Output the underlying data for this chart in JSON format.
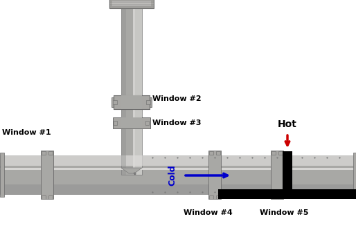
{
  "bg_color": "#ffffff",
  "pipe_color": "#c0bfbc",
  "pipe_dark": "#7a7a7a",
  "pipe_mid": "#a8a8a5",
  "pipe_light": "#dddcda",
  "pipe_shadow": "#909090",
  "flange_color": "#a8a7a4",
  "flange_dark": "#6a6a6a",
  "black": "#000000",
  "hot_color": "#cc0000",
  "cold_color": "#0000cc",
  "text_color": "#000000",
  "labels": {
    "window1": "Window #1",
    "window2": "Window #2",
    "window3": "Window #3",
    "window4": "Window #4",
    "window5": "Window #5",
    "hot": "Hot",
    "cold": "Cold"
  }
}
